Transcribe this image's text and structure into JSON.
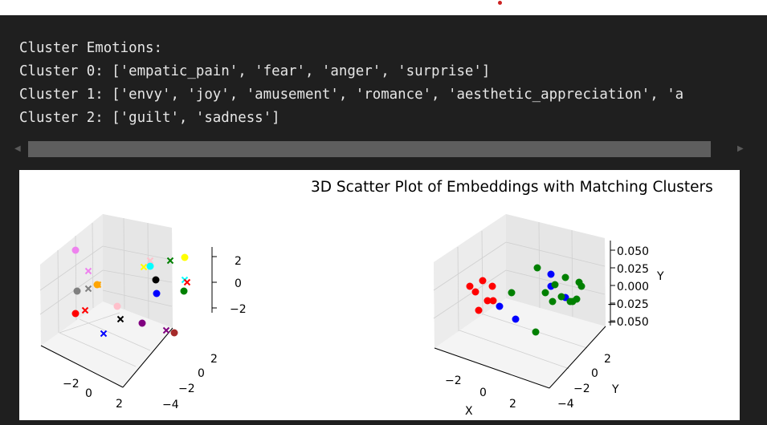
{
  "output": {
    "lines": [
      "Cluster Emotions:",
      "Cluster 0: ['empatic_pain', 'fear', 'anger', 'surprise']",
      "Cluster 1: ['envy', 'joy', 'amusement', 'romance', 'aesthetic_appreciation', 'a",
      "Cluster 2: ['guilt', 'sadness']"
    ]
  },
  "scrollbar": {
    "left_arrow": "◀",
    "right_arrow": "▶"
  },
  "colors": {
    "background": "#1f1f1f",
    "text": "#e6e6e6",
    "scroll_thumb": "#5e5e5e",
    "plot_bg": "#ffffff"
  },
  "chart_data": [
    {
      "type": "scatter",
      "title": "",
      "projection": "3d",
      "xlabel": "",
      "ylabel": "",
      "zlabel": "",
      "x_ticks": [
        "−2",
        "0",
        "2"
      ],
      "y_ticks": [
        "2",
        "0",
        "−2",
        "−4"
      ],
      "z_ticks": [
        "2",
        "0",
        "−2"
      ],
      "series": [
        {
          "marker": "o",
          "color": "#ee82ee"
        },
        {
          "marker": "x",
          "color": "#ee82ee"
        },
        {
          "marker": "x",
          "color": "#808080"
        },
        {
          "marker": "o",
          "color": "#808080"
        },
        {
          "marker": "o",
          "color": "#ffa500"
        },
        {
          "marker": "x",
          "color": "#ffa500"
        },
        {
          "marker": "x",
          "color": "#ffc0cb"
        },
        {
          "marker": "o",
          "color": "#ffc0cb"
        },
        {
          "marker": "x",
          "color": "#ff0000"
        },
        {
          "marker": "o",
          "color": "#ff0000"
        },
        {
          "marker": "x",
          "color": "#0000ff"
        },
        {
          "marker": "o",
          "color": "#0000ff"
        },
        {
          "marker": "x",
          "color": "#000000"
        },
        {
          "marker": "o",
          "color": "#000000"
        },
        {
          "marker": "o",
          "color": "#800080"
        },
        {
          "marker": "x",
          "color": "#800080"
        },
        {
          "marker": "o",
          "color": "#a52a2a"
        },
        {
          "marker": "x",
          "color": "#008000"
        },
        {
          "marker": "o",
          "color": "#008000"
        },
        {
          "marker": "o",
          "color": "#ffff00"
        },
        {
          "marker": "x",
          "color": "#ffff00"
        },
        {
          "marker": "o",
          "color": "#00ffff"
        },
        {
          "marker": "x",
          "color": "#00ffff"
        },
        {
          "marker": "x",
          "color": "#ff0000"
        }
      ]
    },
    {
      "type": "scatter",
      "title": "3D Scatter Plot of Embeddings with Matching Clusters",
      "projection": "3d",
      "xlabel": "X",
      "ylabel": "Y",
      "zlabel": "Y",
      "x_ticks": [
        "−2",
        "0",
        "2"
      ],
      "y_ticks": [
        "2",
        "0",
        "−2",
        "−4"
      ],
      "z_ticks": [
        "0.050",
        "0.025",
        "0.000",
        "−0.025",
        "−0.050"
      ],
      "series": [
        {
          "name": "",
          "color": "#ff0000",
          "count": 7
        },
        {
          "name": "",
          "color": "#0000ff",
          "count": 5
        },
        {
          "name": "",
          "color": "#008000",
          "count": 13
        }
      ]
    }
  ]
}
